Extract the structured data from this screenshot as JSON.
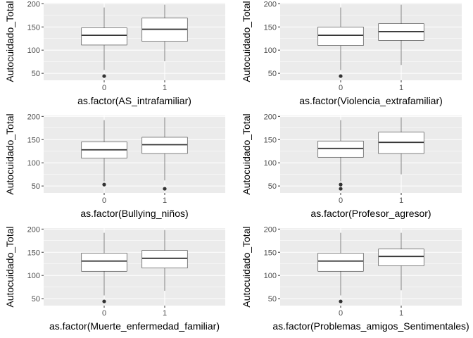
{
  "chart_data": [
    {
      "type": "boxplot",
      "xlabel": "as.factor(AS_intrafamiliar)",
      "ylabel": "Autocuidado_Total",
      "categories": [
        "0",
        "1"
      ],
      "ylim": [
        35,
        202
      ],
      "yticks": [
        50,
        100,
        150,
        200
      ],
      "boxes": [
        {
          "category": "0",
          "whisker_low": 57,
          "q1": 111,
          "median": 132,
          "q3": 148,
          "whisker_high": 192,
          "outliers": [
            44
          ]
        },
        {
          "category": "1",
          "whisker_low": 76,
          "q1": 119,
          "median": 145,
          "q3": 169,
          "whisker_high": 198,
          "outliers": []
        }
      ]
    },
    {
      "type": "boxplot",
      "xlabel": "as.factor(Violencia_extrafamiliar)",
      "ylabel": "Autocuidado_Total",
      "categories": [
        "0",
        "1"
      ],
      "ylim": [
        35,
        202
      ],
      "yticks": [
        50,
        100,
        150,
        200
      ],
      "boxes": [
        {
          "category": "0",
          "whisker_low": 57,
          "q1": 110,
          "median": 132,
          "q3": 150,
          "whisker_high": 192,
          "outliers": [
            44
          ]
        },
        {
          "category": "1",
          "whisker_low": 68,
          "q1": 121,
          "median": 140,
          "q3": 157,
          "whisker_high": 198,
          "outliers": []
        }
      ]
    },
    {
      "type": "boxplot",
      "xlabel": "as.factor(Bullying_niños)",
      "ylabel": "Autocuidado_Total",
      "categories": [
        "0",
        "1"
      ],
      "ylim": [
        35,
        202
      ],
      "yticks": [
        50,
        100,
        150,
        200
      ],
      "boxes": [
        {
          "category": "0",
          "whisker_low": 60,
          "q1": 110,
          "median": 128,
          "q3": 145,
          "whisker_high": 192,
          "outliers": [
            53
          ]
        },
        {
          "category": "1",
          "whisker_low": 62,
          "q1": 120,
          "median": 139,
          "q3": 155,
          "whisker_high": 198,
          "outliers": [
            44
          ]
        }
      ]
    },
    {
      "type": "boxplot",
      "xlabel": "as.factor(Profesor_agresor)",
      "ylabel": "Autocuidado_Total",
      "categories": [
        "0",
        "1"
      ],
      "ylim": [
        35,
        202
      ],
      "yticks": [
        50,
        100,
        150,
        200
      ],
      "boxes": [
        {
          "category": "0",
          "whisker_low": 60,
          "q1": 112,
          "median": 131,
          "q3": 147,
          "whisker_high": 192,
          "outliers": [
            53,
            44
          ]
        },
        {
          "category": "1",
          "whisker_low": 75,
          "q1": 120,
          "median": 144,
          "q3": 166,
          "whisker_high": 198,
          "outliers": []
        }
      ]
    },
    {
      "type": "boxplot",
      "xlabel": "as.factor(Muerte_enfermedad_familiar)",
      "ylabel": "Autocuidado_Total",
      "categories": [
        "0",
        "1"
      ],
      "ylim": [
        35,
        202
      ],
      "yticks": [
        50,
        100,
        150,
        200
      ],
      "boxes": [
        {
          "category": "0",
          "whisker_low": 57,
          "q1": 109,
          "median": 131,
          "q3": 148,
          "whisker_high": 192,
          "outliers": [
            44
          ]
        },
        {
          "category": "1",
          "whisker_low": 67,
          "q1": 116,
          "median": 137,
          "q3": 154,
          "whisker_high": 198,
          "outliers": []
        }
      ]
    },
    {
      "type": "boxplot",
      "xlabel": "as.factor(Problemas_amigos_Sentimentales)",
      "ylabel": "Autocuidado_Total",
      "categories": [
        "0",
        "1"
      ],
      "ylim": [
        35,
        202
      ],
      "yticks": [
        50,
        100,
        150,
        200
      ],
      "boxes": [
        {
          "category": "0",
          "whisker_low": 57,
          "q1": 109,
          "median": 131,
          "q3": 148,
          "whisker_high": 192,
          "outliers": [
            44
          ]
        },
        {
          "category": "1",
          "whisker_low": 68,
          "q1": 121,
          "median": 141,
          "q3": 157,
          "whisker_high": 192,
          "outliers": []
        }
      ]
    }
  ],
  "colors": {
    "panel_background": "#ebebeb",
    "grid_line": "#ffffff",
    "box_fill": "#ffffff",
    "box_outline": "#333333",
    "outlier": "#333333",
    "tick_label": "#4d4d4d",
    "tick_mark": "#333333"
  }
}
